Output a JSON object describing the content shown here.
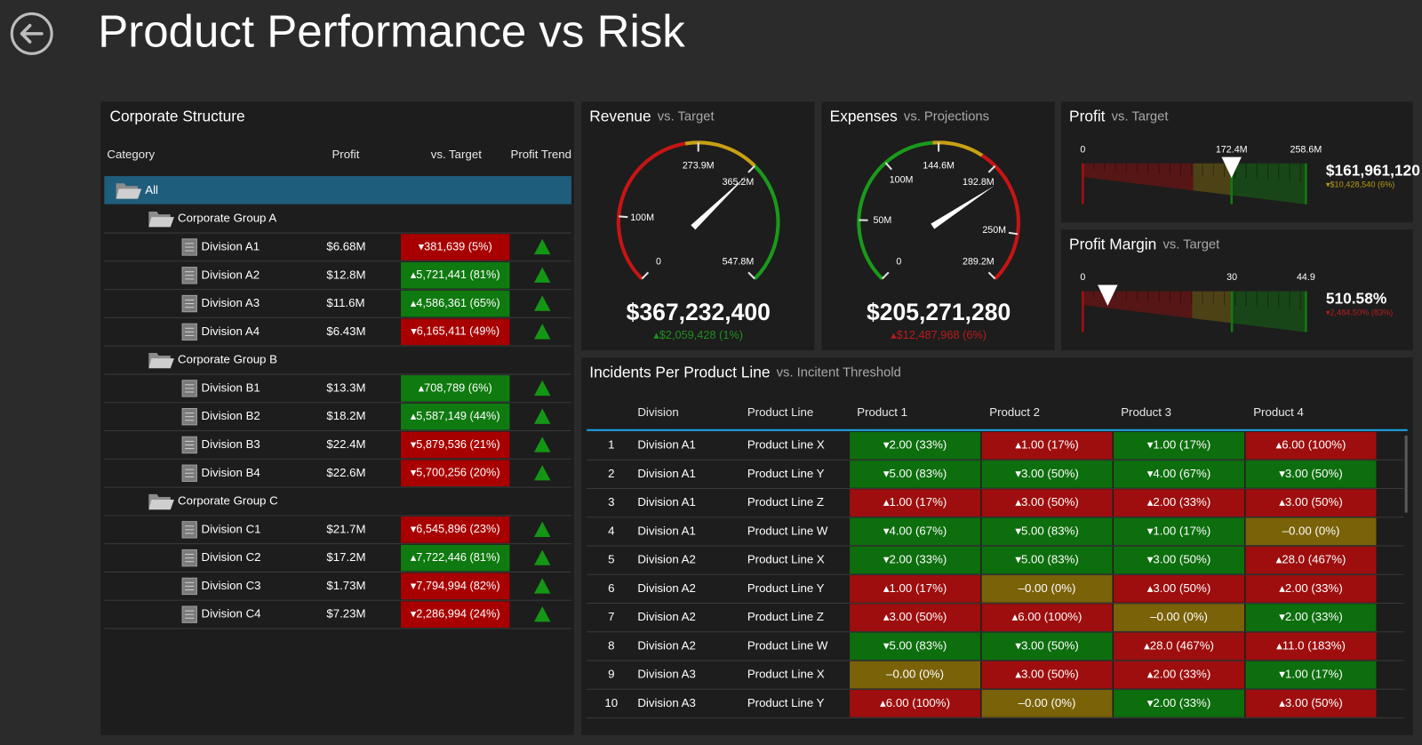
{
  "header": {
    "title": "Product Performance vs Risk"
  },
  "structure": {
    "title": "Corporate Structure",
    "columns": [
      "Category",
      "Profit",
      "vs. Target",
      "Profit Trend"
    ],
    "colors": {
      "▴": "#0f7a0f",
      "▾": "#a80000"
    },
    "root": "All",
    "groups": [
      {
        "name": "Corporate Group A",
        "divisions": [
          {
            "name": "Division A1",
            "profit": "$6.68M",
            "vs_target": "▾381,639 (5%)"
          },
          {
            "name": "Division A2",
            "profit": "$12.8M",
            "vs_target": "▴5,721,441 (81%)"
          },
          {
            "name": "Division A3",
            "profit": "$11.6M",
            "vs_target": "▴4,586,361 (65%)"
          },
          {
            "name": "Division A4",
            "profit": "$6.43M",
            "vs_target": "▾6,165,411 (49%)"
          }
        ]
      },
      {
        "name": "Corporate Group B",
        "divisions": [
          {
            "name": "Division B1",
            "profit": "$13.3M",
            "vs_target": "▴708,789 (6%)"
          },
          {
            "name": "Division B2",
            "profit": "$18.2M",
            "vs_target": "▴5,587,149 (44%)"
          },
          {
            "name": "Division B3",
            "profit": "$22.4M",
            "vs_target": "▾5,879,536 (21%)"
          },
          {
            "name": "Division B4",
            "profit": "$22.6M",
            "vs_target": "▾5,700,256 (20%)"
          }
        ]
      },
      {
        "name": "Corporate Group C",
        "divisions": [
          {
            "name": "Division C1",
            "profit": "$21.7M",
            "vs_target": "▾6,545,896 (23%)"
          },
          {
            "name": "Division C2",
            "profit": "$17.2M",
            "vs_target": "▴7,722,446 (81%)"
          },
          {
            "name": "Division C3",
            "profit": "$1.73M",
            "vs_target": "▾7,794,994 (82%)"
          },
          {
            "name": "Division C4",
            "profit": "$7.23M",
            "vs_target": "▾2,286,994 (24%)"
          }
        ]
      }
    ]
  },
  "gauges": [
    {
      "title": "Revenue",
      "subtitle": "vs. Target",
      "ticks": [
        0,
        {
          "value": 100000000,
          "label": "100M"
        },
        {
          "value": 273900000,
          "label": "273.9M"
        },
        {
          "value": 365200000,
          "label": "365.2M"
        },
        {
          "value": 547800000,
          "label": "547.8M"
        }
      ],
      "bands": [
        {
          "from": 0,
          "to": 255000000,
          "color": "#c81414"
        },
        {
          "from": 255000000,
          "to": 365200000,
          "color": "#c8a014"
        },
        {
          "from": 365200000,
          "to": 547800000,
          "color": "#1a9a1a"
        }
      ],
      "value": 367232400,
      "value_label": "$367,232,400",
      "delta": "▴$2,059,428 (1%)",
      "delta_color": "#1f8f1f"
    },
    {
      "title": "Expenses",
      "subtitle": "vs. Projections",
      "ticks": [
        0,
        {
          "value": 50000000,
          "label": "50M"
        },
        {
          "value": 100000000,
          "label": "100M"
        },
        {
          "value": 144600000,
          "label": "144.6M"
        },
        {
          "value": 192800000,
          "label": "192.8M"
        },
        {
          "value": 250000000,
          "label": "250M"
        },
        {
          "value": 289200000,
          "label": "289.2M"
        }
      ],
      "bands": [
        {
          "from": 0,
          "to": 140000000,
          "color": "#1a9a1a"
        },
        {
          "from": 140000000,
          "to": 180000000,
          "color": "#c8a014"
        },
        {
          "from": 180000000,
          "to": 289200000,
          "color": "#c81414"
        }
      ],
      "value": 205271280,
      "value_label": "$205,271,280",
      "delta": "▴$12,487,968 (6%)",
      "delta_color": "#b81c1c"
    }
  ],
  "bullets": [
    {
      "title": "Profit",
      "subtitle": "vs. Target",
      "ticks": [
        0,
        {
          "value": 172400000,
          "label": "172.4M"
        },
        {
          "value": 258600000,
          "label": "258.6M"
        }
      ],
      "bands": [
        {
          "from": 0,
          "to": 128000000,
          "color": "#a01010"
        },
        {
          "from": 128000000,
          "to": 172400000,
          "color": "#8a7010"
        },
        {
          "from": 172400000,
          "to": 258600000,
          "color": "#137a13"
        }
      ],
      "marker": 172400000,
      "value": "$161,961,120",
      "delta": "▾$10,428,540 (6%)",
      "delta_color": "#b89a10"
    },
    {
      "title": "Profit Margin",
      "subtitle": "vs. Target",
      "ticks": [
        0,
        30,
        44.9
      ],
      "bands": [
        {
          "from": 0,
          "to": 22,
          "color": "#a01010"
        },
        {
          "from": 22,
          "to": 30,
          "color": "#8a7010"
        },
        {
          "from": 30,
          "to": 44.9,
          "color": "#137a13"
        }
      ],
      "marker": 5,
      "value": "510.58%",
      "delta": "▾2,484.50% (83%)",
      "delta_color": "#b81c1c"
    }
  ],
  "incidents": {
    "title": "Incidents Per Product Line",
    "subtitle": "vs. Incitent Threshold",
    "columns": [
      "Division",
      "Product Line",
      "Product 1",
      "Product 2",
      "Product 3",
      "Product 4"
    ],
    "colors": {
      "▴": "#9e0e0e",
      "▾": "#0d6e0d",
      "–": "#7a6208"
    },
    "rows": [
      {
        "number": 1,
        "division": "Division A1",
        "product_line": "Product Line X",
        "products": [
          "▾2.00 (33%)",
          "▴1.00 (17%)",
          "▾1.00 (17%)",
          "▴6.00 (100%)"
        ]
      },
      {
        "number": 2,
        "division": "Division A1",
        "product_line": "Product Line Y",
        "products": [
          "▾5.00 (83%)",
          "▾3.00 (50%)",
          "▾4.00 (67%)",
          "▾3.00 (50%)"
        ]
      },
      {
        "number": 3,
        "division": "Division A1",
        "product_line": "Product Line Z",
        "products": [
          "▴1.00 (17%)",
          "▴3.00 (50%)",
          "▴2.00 (33%)",
          "▴3.00 (50%)"
        ]
      },
      {
        "number": 4,
        "division": "Division A1",
        "product_line": "Product Line W",
        "products": [
          "▾4.00 (67%)",
          "▾5.00 (83%)",
          "▾1.00 (17%)",
          "–0.00 (0%)"
        ]
      },
      {
        "number": 5,
        "division": "Division A2",
        "product_line": "Product Line X",
        "products": [
          "▾2.00 (33%)",
          "▾5.00 (83%)",
          "▾3.00 (50%)",
          "▴28.0 (467%)"
        ]
      },
      {
        "number": 6,
        "division": "Division A2",
        "product_line": "Product Line Y",
        "products": [
          "▴1.00 (17%)",
          "–0.00 (0%)",
          "▴3.00 (50%)",
          "▴2.00 (33%)"
        ]
      },
      {
        "number": 7,
        "division": "Division A2",
        "product_line": "Product Line Z",
        "products": [
          "▴3.00 (50%)",
          "▴6.00 (100%)",
          "–0.00 (0%)",
          "▾2.00 (33%)"
        ]
      },
      {
        "number": 8,
        "division": "Division A2",
        "product_line": "Product Line W",
        "products": [
          "▾5.00 (83%)",
          "▾3.00 (50%)",
          "▴28.0 (467%)",
          "▴11.0 (183%)"
        ]
      },
      {
        "number": 9,
        "division": "Division A3",
        "product_line": "Product Line X",
        "products": [
          "–0.00 (0%)",
          "▴3.00 (50%)",
          "▴2.00 (33%)",
          "▾1.00 (17%)"
        ]
      },
      {
        "number": 10,
        "division": "Division A3",
        "product_line": "Product Line Y",
        "products": [
          "▴6.00 (100%)",
          "–0.00 (0%)",
          "▾2.00 (33%)",
          "▴3.00 (50%)"
        ]
      }
    ]
  }
}
